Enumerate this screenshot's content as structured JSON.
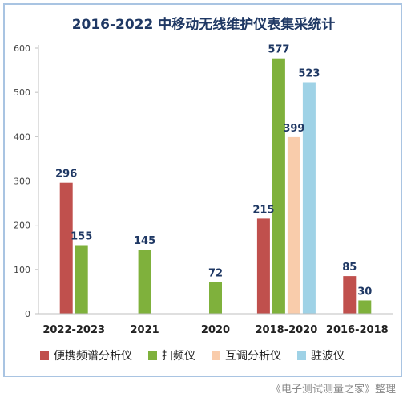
{
  "chart_data": {
    "type": "bar",
    "title": "2016-2022 中移动无线维护仪表集采统计",
    "categories": [
      "2022-2023",
      "2021",
      "2020",
      "2018-2020",
      "2016-2018"
    ],
    "series": [
      {
        "name": "便携频谱分析仪",
        "color": "#c0504d",
        "values": [
          296,
          null,
          null,
          215,
          85
        ]
      },
      {
        "name": "扫频仪",
        "color": "#7fb13c",
        "values": [
          155,
          145,
          72,
          577,
          30
        ]
      },
      {
        "name": "互调分析仪",
        "color": "#f9ccab",
        "values": [
          null,
          null,
          null,
          399,
          null
        ]
      },
      {
        "name": "驻波仪",
        "color": "#9fd2e6",
        "values": [
          null,
          null,
          null,
          523,
          null
        ]
      }
    ],
    "ylim": [
      0,
      600
    ],
    "yticks": [
      0,
      100,
      200,
      300,
      400,
      500,
      600
    ],
    "grid": false,
    "legend": "bottom"
  },
  "credit": "《电子测试测量之家》整理"
}
